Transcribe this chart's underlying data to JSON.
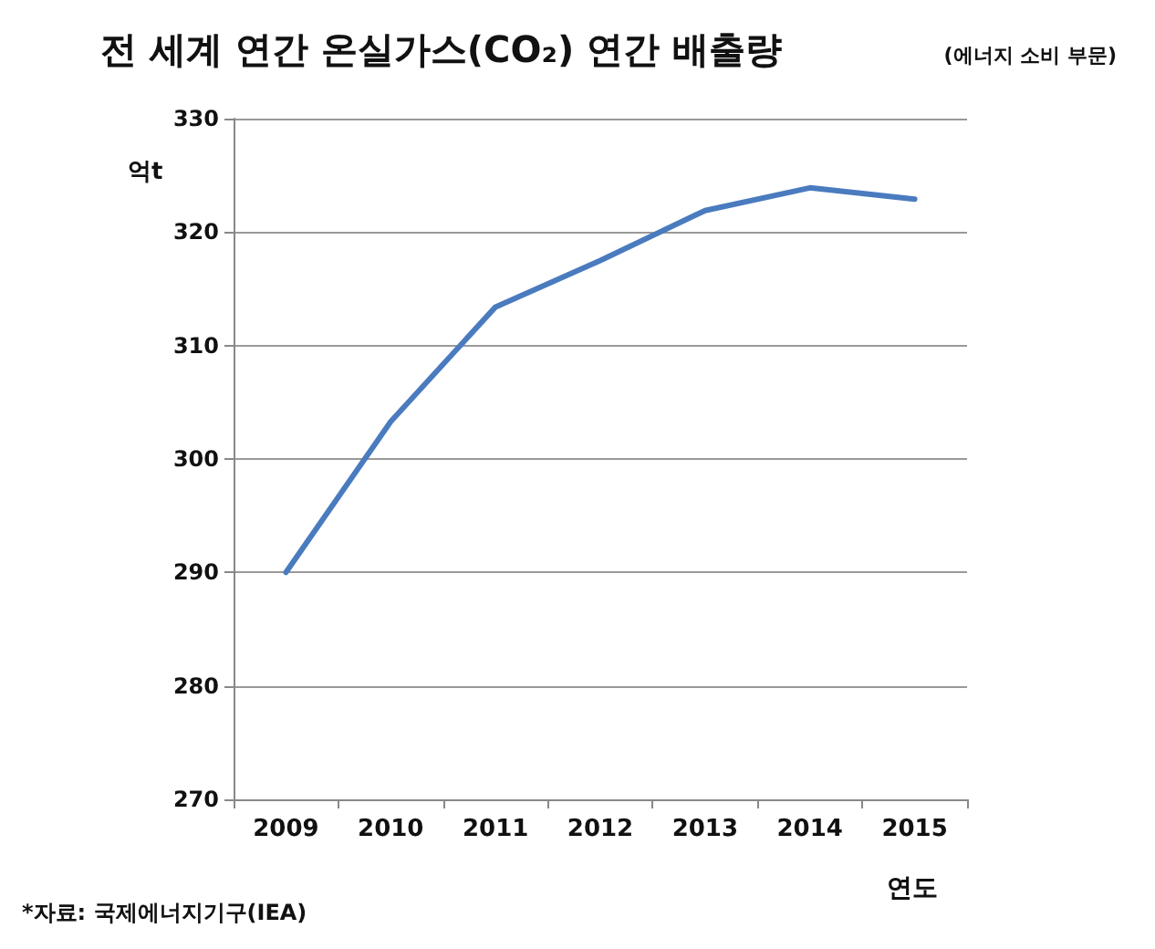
{
  "chart_data": {
    "type": "line",
    "title": "전 세계 연간 온실가스(CO₂) 연간 배출량",
    "subtitle": "(에너지 소비 부문)",
    "ylabel": "억t",
    "xlabel": "연도",
    "annotations": [
      "*자료: 국제에너지기구(IEA)"
    ],
    "categories": [
      "2009",
      "2010",
      "2011",
      "2012",
      "2013",
      "2014",
      "2015"
    ],
    "series": [
      {
        "color": "#4a7bbf",
        "values": [
          290,
          303.3,
          313.4,
          317.5,
          321.9,
          323.9,
          322.9
        ]
      }
    ],
    "ylim": [
      270,
      330
    ],
    "yticks": [
      270,
      280,
      290,
      300,
      310,
      320,
      330
    ],
    "grid": "y",
    "marker": "none",
    "line_style": "solid"
  }
}
